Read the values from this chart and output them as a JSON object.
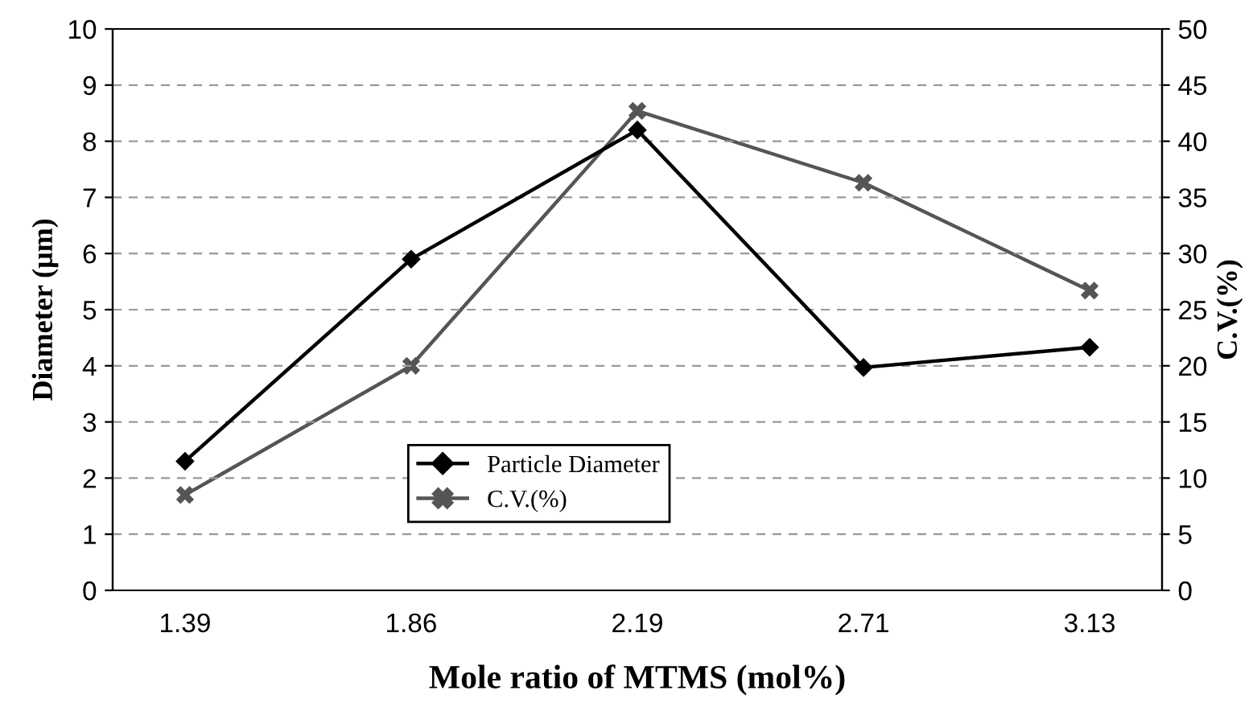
{
  "chart_data": {
    "type": "line",
    "xlabel": "Mole ratio of MTMS (mol%)",
    "ylabel": "Diameter (μm)",
    "y2label": "C.V.(%)",
    "categories": [
      "1.39",
      "1.86",
      "2.19",
      "2.71",
      "3.13"
    ],
    "series": [
      {
        "name": "Particle Diameter",
        "color": "#000000",
        "marker": "diamond",
        "values": [
          2.3,
          5.9,
          8.2,
          3.97,
          4.33
        ]
      },
      {
        "name": "C.V.(%)",
        "color": "#555555",
        "marker": "cross",
        "axis": "y2",
        "values": [
          8.5,
          20,
          42.7,
          36.3,
          26.7
        ]
      }
    ],
    "ylim": [
      0,
      10
    ],
    "yticks": [
      0,
      1,
      2,
      3,
      4,
      5,
      6,
      7,
      8,
      9,
      10
    ],
    "y2lim": [
      0,
      50
    ],
    "y2ticks": [
      0,
      5,
      10,
      15,
      20,
      25,
      30,
      35,
      40,
      45,
      50
    ],
    "grid": "y",
    "legend": "bottom",
    "line_style": "solid"
  }
}
